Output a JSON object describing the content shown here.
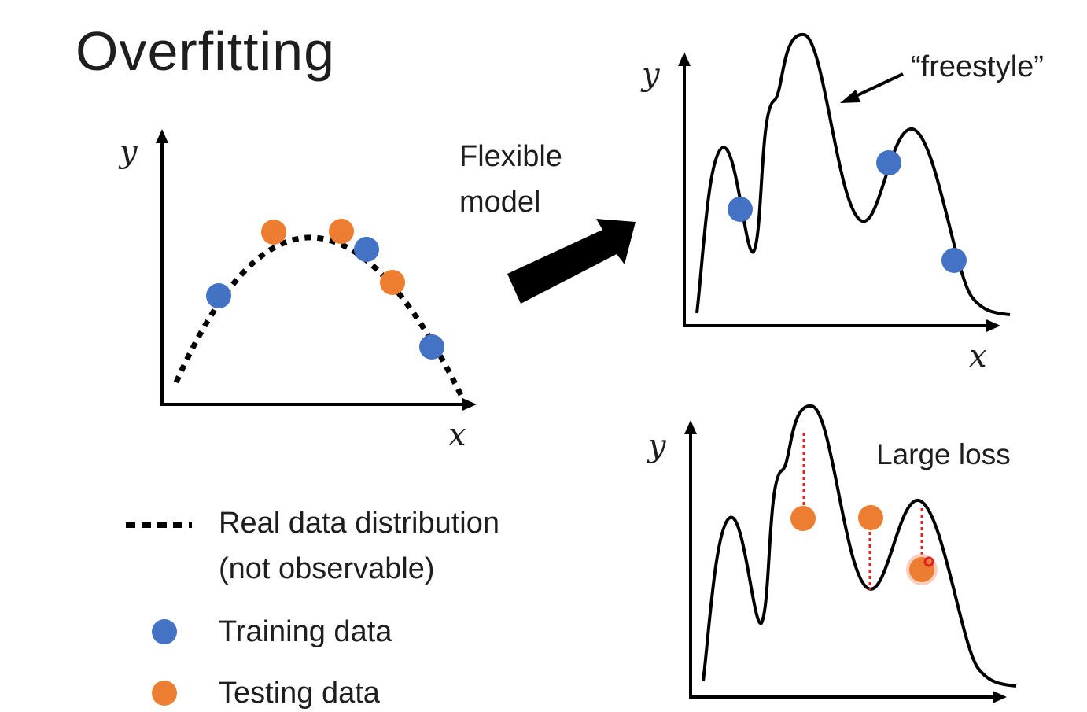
{
  "slide": {
    "title": "Overfitting",
    "arrow_label_line1": "Flexible",
    "arrow_label_line2": "model",
    "annotation_freestyle": "“freestyle”",
    "annotation_large_loss": "Large loss"
  },
  "axes": {
    "x_label": "x",
    "y_label": "y"
  },
  "legend": {
    "real_line1": "Real data distribution",
    "real_line2": "(not observable)",
    "training": "Training data",
    "testing": "Testing data"
  },
  "colors": {
    "training": "#4472c4",
    "testing": "#ed7d31",
    "curve": "#000000",
    "loss_line": "#e02020"
  }
}
